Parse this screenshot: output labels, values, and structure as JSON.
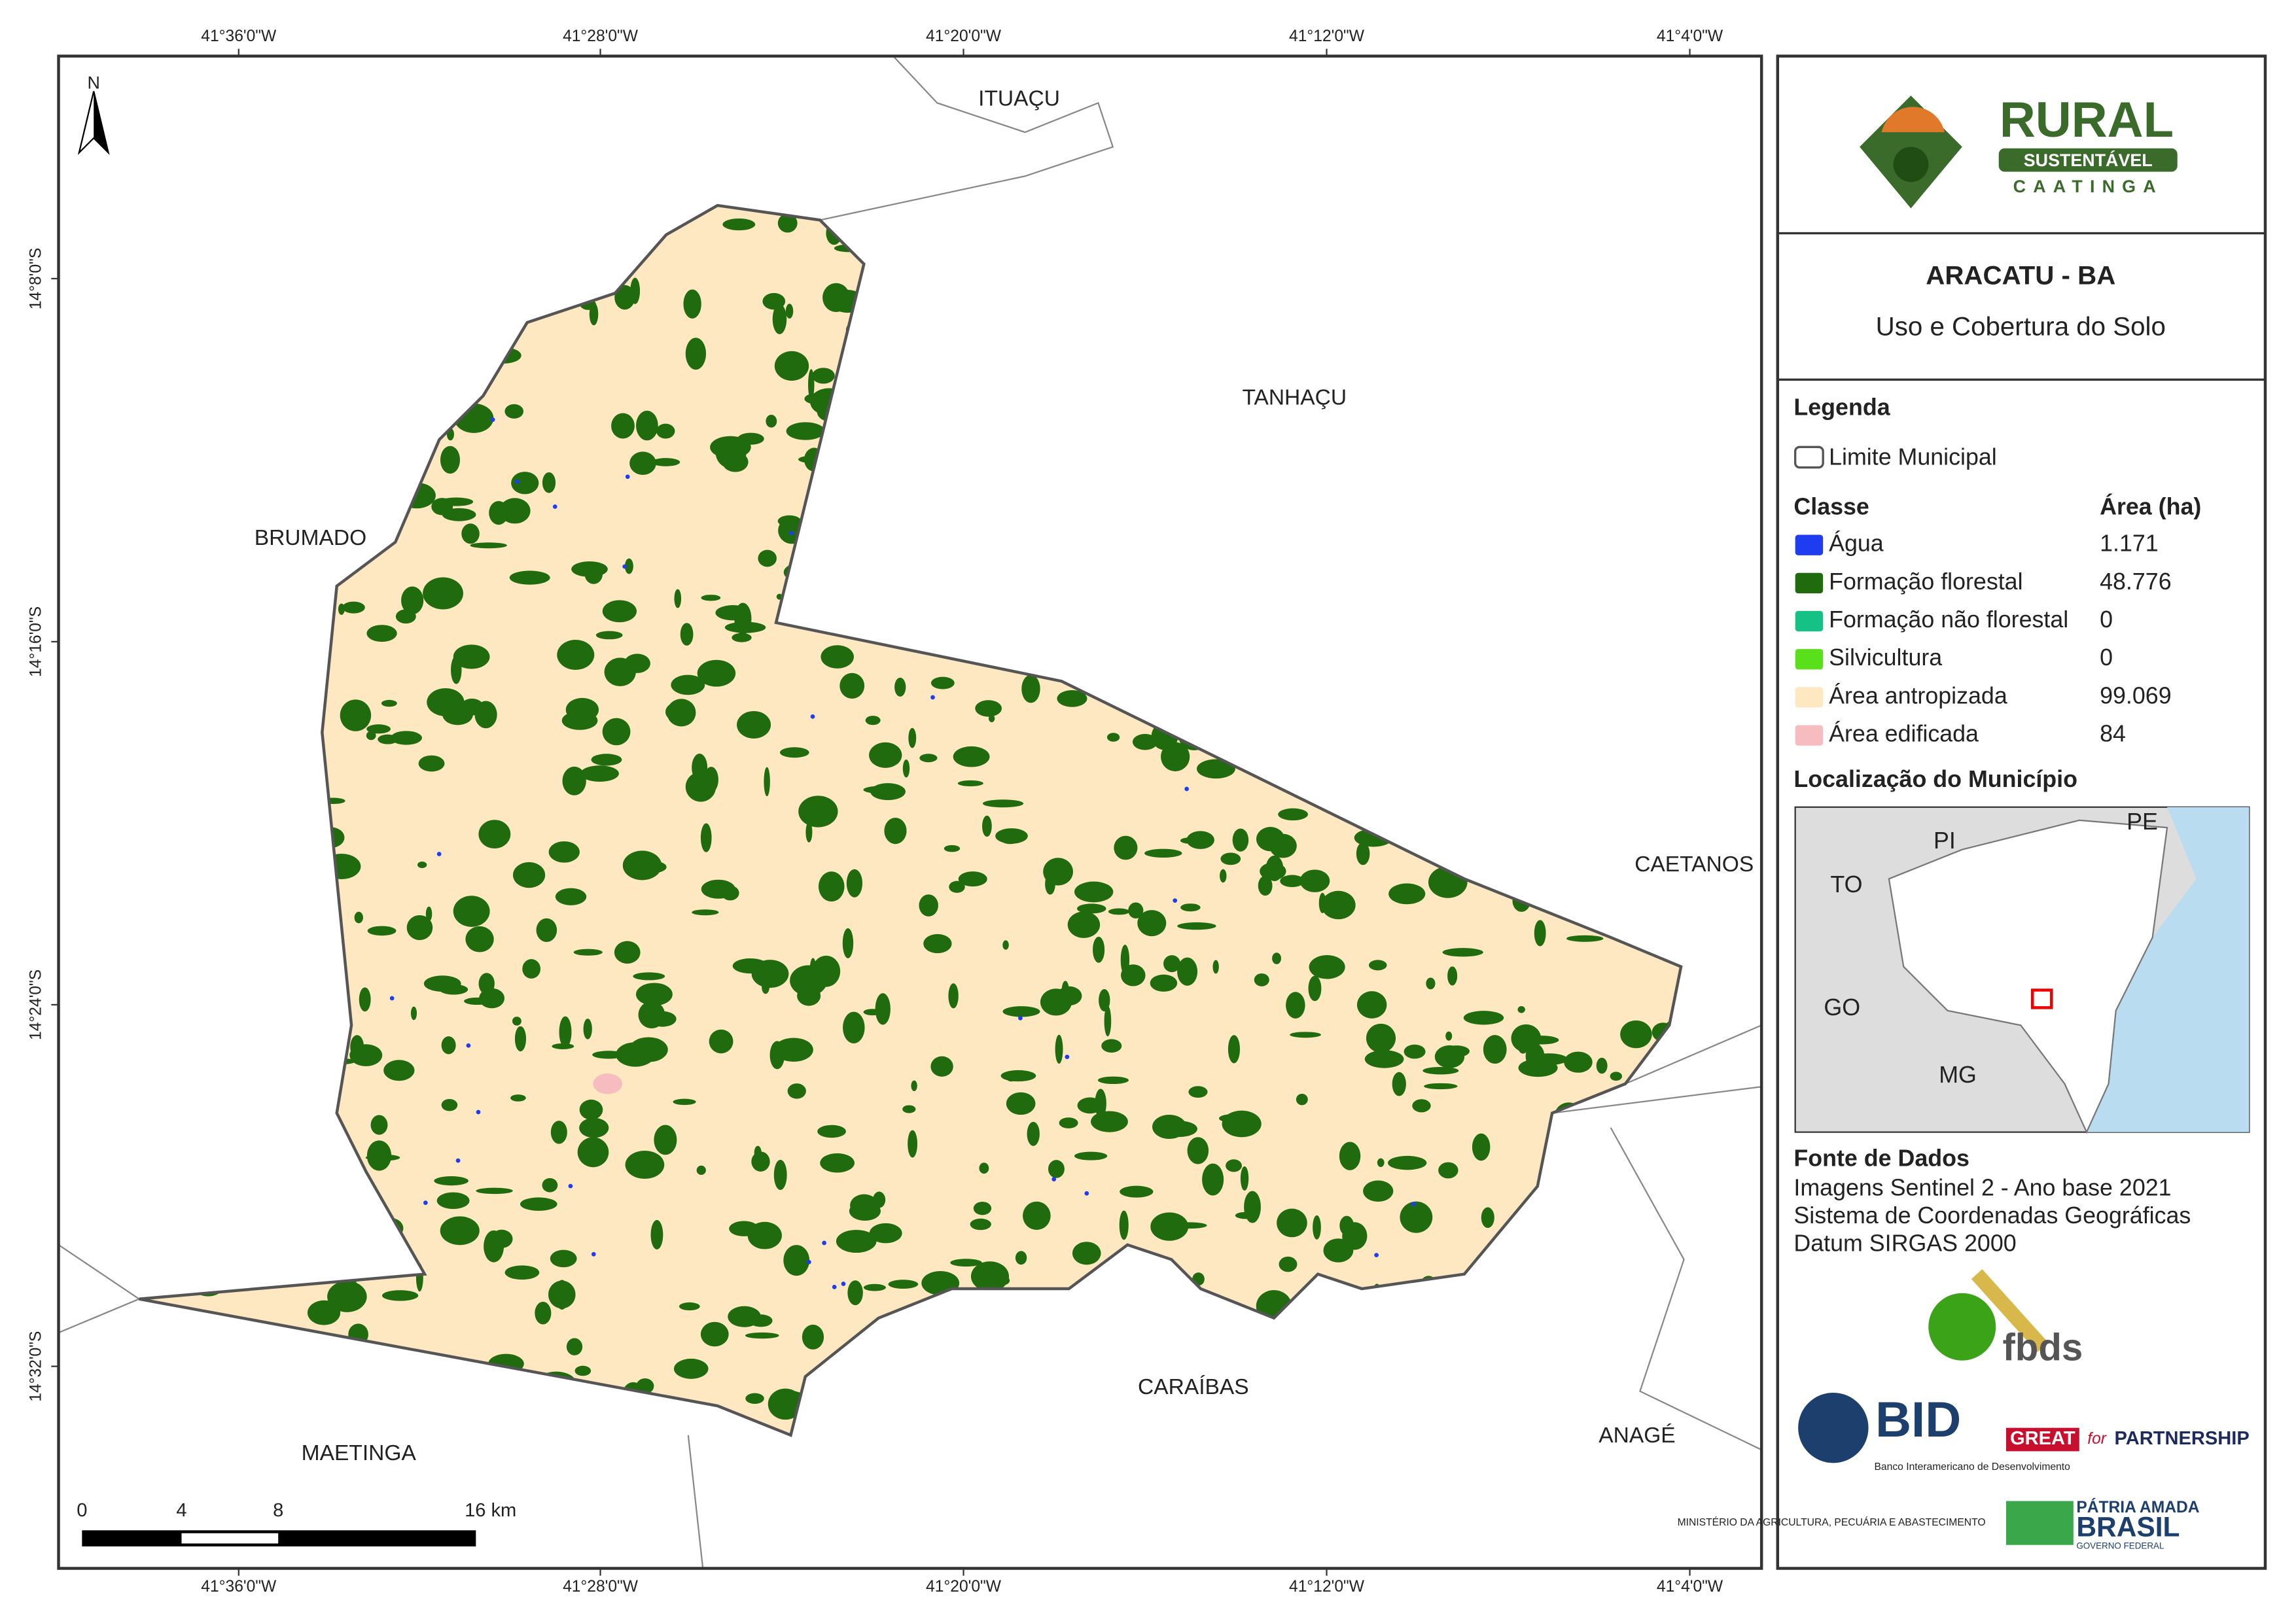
{
  "map": {
    "north": "N",
    "lon_labels": [
      "41°36'0\"W",
      "41°28'0\"W",
      "41°20'0\"W",
      "41°12'0\"W",
      "41°4'0\"W"
    ],
    "lat_labels": [
      "14°8'0\"S",
      "14°16'0\"S",
      "14°24'0\"S",
      "14°32'0\"S"
    ],
    "neighbors": [
      "ITUAÇU",
      "TANHAÇU",
      "BRUMADO",
      "CAETANOS",
      "CARAÍBAS",
      "ANAGÉ",
      "MAETINGA"
    ],
    "scale_labels": [
      "0",
      "4",
      "8",
      "16 km"
    ]
  },
  "panel": {
    "logo": {
      "word": "RURAL",
      "band": "SUSTENTÁVEL",
      "sub": "CAATINGA"
    },
    "title": "ARACATU - BA",
    "subtitle": "Uso e Cobertura do Solo",
    "legend": {
      "title": "Legenda",
      "boundary": "Limite Municipal",
      "class_header": "Classe",
      "area_header": "Área (ha)",
      "items": [
        {
          "name": "Água",
          "area": "1.171",
          "color": "#1f3cf0"
        },
        {
          "name": "Formação florestal",
          "area": "48.776",
          "color": "#1f6b0e"
        },
        {
          "name": "Formação não florestal",
          "area": "0",
          "color": "#16c185"
        },
        {
          "name": "Silvicultura",
          "area": "0",
          "color": "#59e01a"
        },
        {
          "name": "Área antropizada",
          "area": "99.069",
          "color": "#fde8c2"
        },
        {
          "name": "Área edificada",
          "area": "84",
          "color": "#f7bcc0"
        }
      ]
    },
    "location": {
      "title": "Localização do Município",
      "states": [
        "PI",
        "PE",
        "TO",
        "GO",
        "MG"
      ]
    },
    "sources": {
      "title": "Fonte de Dados",
      "lines": [
        "Imagens Sentinel 2 - Ano base 2021",
        "Sistema de Coordenadas Geográficas",
        "Datum SIRGAS 2000"
      ]
    },
    "partners": {
      "fbds": "fbds",
      "bid": "BID",
      "bid_full": "Banco Interamericano de Desenvolvimento",
      "great": "GREAT",
      "for": "for",
      "partnership": "PARTNERSHIP",
      "ministry": "MINISTÉRIO DA AGRICULTURA, PECUÁRIA E ABASTECIMENTO",
      "patria": "PÁTRIA AMADA",
      "brasil": "BRASIL",
      "gov": "GOVERNO FEDERAL"
    }
  }
}
